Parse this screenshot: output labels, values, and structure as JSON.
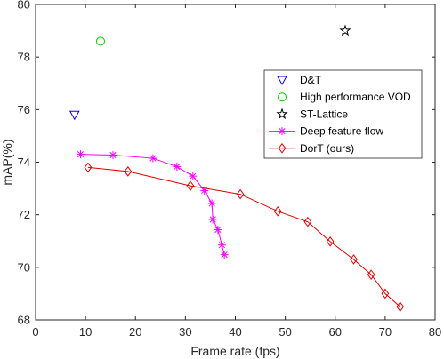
{
  "chart_data": {
    "type": "scatter",
    "xlabel": "Frame rate (fps)",
    "ylabel": "mAP(%)",
    "xlim": [
      0,
      80
    ],
    "ylim": [
      68,
      80
    ],
    "xticks": [
      0,
      10,
      20,
      30,
      40,
      50,
      60,
      70,
      80
    ],
    "yticks": [
      68,
      70,
      72,
      74,
      76,
      78,
      80
    ],
    "xtick_labels": [
      "0",
      "10",
      "20",
      "30",
      "40",
      "50",
      "60",
      "70",
      "80"
    ],
    "ytick_labels": [
      "68",
      "70",
      "72",
      "74",
      "76",
      "78",
      "80"
    ],
    "grid": false,
    "legend_position": "top-right",
    "series": [
      {
        "name": "D&T",
        "marker": "triangle-down",
        "line": false,
        "color": "#0000ff",
        "points": [
          {
            "x": 7.8,
            "y": 75.8
          }
        ]
      },
      {
        "name": "High performance VOD",
        "marker": "circle",
        "line": false,
        "color": "#00cc00",
        "points": [
          {
            "x": 13.0,
            "y": 78.6
          }
        ]
      },
      {
        "name": "ST-Lattice",
        "marker": "pentagram",
        "line": false,
        "color": "#000000",
        "points": [
          {
            "x": 62.0,
            "y": 79.0
          }
        ]
      },
      {
        "name": "Deep feature flow",
        "marker": "asterisk",
        "line": true,
        "color": "#ff00ff",
        "points": [
          {
            "x": 9.0,
            "y": 74.3
          },
          {
            "x": 15.5,
            "y": 74.27
          },
          {
            "x": 23.5,
            "y": 74.15
          },
          {
            "x": 28.3,
            "y": 73.83
          },
          {
            "x": 31.5,
            "y": 73.47
          },
          {
            "x": 33.8,
            "y": 72.92
          },
          {
            "x": 35.3,
            "y": 72.43
          },
          {
            "x": 35.5,
            "y": 71.82
          },
          {
            "x": 36.5,
            "y": 71.43
          },
          {
            "x": 37.3,
            "y": 70.85
          },
          {
            "x": 37.8,
            "y": 70.48
          }
        ]
      },
      {
        "name": "DorT (ours)",
        "marker": "diamond",
        "line": true,
        "color": "#dd0000",
        "points": [
          {
            "x": 10.5,
            "y": 73.8
          },
          {
            "x": 18.5,
            "y": 73.65
          },
          {
            "x": 31.0,
            "y": 73.1
          },
          {
            "x": 41.0,
            "y": 72.78
          },
          {
            "x": 48.5,
            "y": 72.13
          },
          {
            "x": 54.5,
            "y": 71.73
          },
          {
            "x": 59.0,
            "y": 70.98
          },
          {
            "x": 63.7,
            "y": 70.3
          },
          {
            "x": 67.2,
            "y": 69.72
          },
          {
            "x": 70.0,
            "y": 69.0
          },
          {
            "x": 73.0,
            "y": 68.5
          }
        ]
      }
    ]
  }
}
